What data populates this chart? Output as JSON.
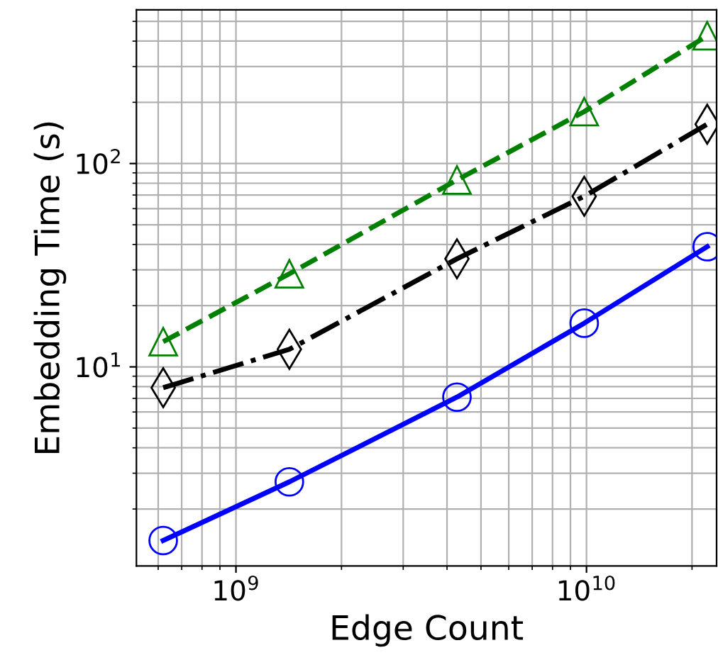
{
  "chart_data": {
    "type": "line",
    "xlabel": "Edge Count",
    "ylabel": "Embedding Time (s)",
    "log": "xy",
    "grid": true,
    "xlim": [
      520000000.0,
      23500000000.0
    ],
    "ylim": [
      1.05,
      570
    ],
    "xticks": [
      {
        "value": 1000000000.0,
        "label": "10$^{9}$"
      },
      {
        "value": 10000000000.0,
        "label": "10$^{10}$"
      }
    ],
    "yticks": [
      {
        "value": 10,
        "label": "10$^{1}$"
      },
      {
        "value": 100,
        "label": "10$^{2}$"
      }
    ],
    "x": [
      620000000.0,
      1420000000.0,
      4270000000.0,
      9850000000.0,
      22100000000.0
    ],
    "series": [
      {
        "color": "#0000ff",
        "marker": "circle",
        "line_style": "solid",
        "values": [
          1.4,
          2.72,
          7.1,
          16.4,
          39
        ]
      },
      {
        "color": "#000000",
        "marker": "diamond",
        "line_style": "dashdot",
        "values": [
          7.9,
          12.2,
          34,
          69,
          156
        ]
      },
      {
        "color": "#008000",
        "marker": "triangle",
        "line_style": "dashed",
        "values": [
          13.3,
          28.7,
          83,
          180,
          425
        ]
      }
    ]
  }
}
